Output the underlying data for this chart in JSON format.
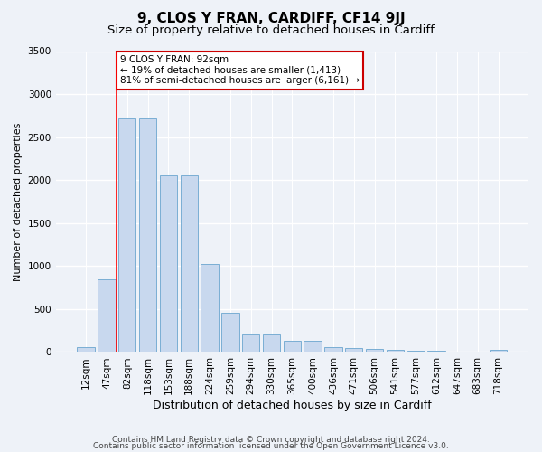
{
  "title1": "9, CLOS Y FRAN, CARDIFF, CF14 9JJ",
  "title2": "Size of property relative to detached houses in Cardiff",
  "xlabel": "Distribution of detached houses by size in Cardiff",
  "ylabel": "Number of detached properties",
  "categories": [
    "12sqm",
    "47sqm",
    "82sqm",
    "118sqm",
    "153sqm",
    "188sqm",
    "224sqm",
    "259sqm",
    "294sqm",
    "330sqm",
    "365sqm",
    "400sqm",
    "436sqm",
    "471sqm",
    "506sqm",
    "541sqm",
    "577sqm",
    "612sqm",
    "647sqm",
    "683sqm",
    "718sqm"
  ],
  "values": [
    60,
    850,
    2720,
    2720,
    2050,
    2050,
    1020,
    455,
    200,
    200,
    130,
    130,
    60,
    50,
    40,
    30,
    20,
    15,
    10,
    8,
    25
  ],
  "bar_color": "#c8d8ee",
  "bar_edge_color": "#7aaed4",
  "redline_x": 1.5,
  "annotation_text": "9 CLOS Y FRAN: 92sqm\n← 19% of detached houses are smaller (1,413)\n81% of semi-detached houses are larger (6,161) →",
  "annotation_box_color": "#ffffff",
  "annotation_box_edge": "#cc0000",
  "ylim": [
    0,
    3500
  ],
  "yticks": [
    0,
    500,
    1000,
    1500,
    2000,
    2500,
    3000,
    3500
  ],
  "footer1": "Contains HM Land Registry data © Crown copyright and database right 2024.",
  "footer2": "Contains public sector information licensed under the Open Government Licence v3.0.",
  "bg_color": "#eef2f8",
  "plot_bg_color": "#eef2f8",
  "grid_color": "#ffffff",
  "title1_fontsize": 11,
  "title2_fontsize": 9.5,
  "xlabel_fontsize": 9,
  "ylabel_fontsize": 8,
  "tick_fontsize": 7.5,
  "annot_fontsize": 7.5,
  "footer_fontsize": 6.5
}
